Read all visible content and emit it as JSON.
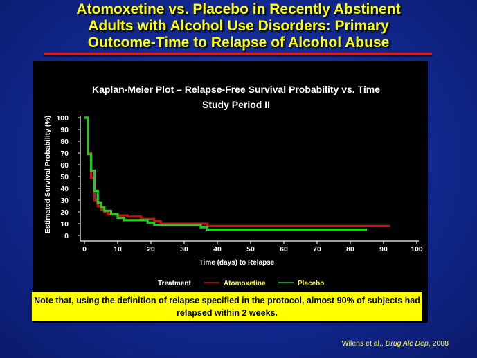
{
  "slide": {
    "title_lines": [
      "Atomoxetine vs. Placebo in Recently Abstinent",
      "Adults with Alcohol Use Disorders:  Primary",
      "Outcome-Time to Relapse of Alcohol Abuse"
    ],
    "note": "Note that, using the definition of relapse specified in the protocol, almost 90% of subjects had relapsed within 2 weeks.",
    "citation_authors": "Wilens et al., ",
    "citation_journal": "Drug Alc Dep",
    "citation_year": ", 2008"
  },
  "colors": {
    "background": "#12288f",
    "title": "#ffff00",
    "rule": "#d81c1c",
    "atomoxetine": "#cc1111",
    "placebo": "#22cc22",
    "note_bg": "#ffff00"
  },
  "chart_data": {
    "type": "line",
    "step": true,
    "title_lines": [
      "Kaplan-Meier Plot – Relapse-Free Survival Probability vs. Time",
      "Study Period II"
    ],
    "xlabel": "Time (days) to Relapse",
    "ylabel": "Estimated Survival Probability (%)",
    "xlim": [
      0,
      100
    ],
    "ylim": [
      0,
      100
    ],
    "xticks": [
      0,
      10,
      20,
      30,
      40,
      50,
      60,
      70,
      80,
      90,
      100
    ],
    "yticks": [
      0,
      10,
      20,
      30,
      40,
      50,
      60,
      70,
      80,
      90,
      100
    ],
    "legend_title": "Treatment",
    "legend_position": "bottom",
    "series": [
      {
        "name": "Atomoxetine",
        "color": "#cc1111",
        "points": [
          [
            0,
            100
          ],
          [
            1,
            100
          ],
          [
            1,
            70
          ],
          [
            2,
            70
          ],
          [
            2,
            49
          ],
          [
            3,
            49
          ],
          [
            3,
            30
          ],
          [
            4,
            30
          ],
          [
            4,
            25
          ],
          [
            5,
            25
          ],
          [
            5,
            22
          ],
          [
            6,
            22
          ],
          [
            6,
            20
          ],
          [
            7,
            20
          ],
          [
            7,
            18
          ],
          [
            10,
            18
          ],
          [
            10,
            17
          ],
          [
            13,
            17
          ],
          [
            13,
            16
          ],
          [
            17,
            16
          ],
          [
            17,
            14
          ],
          [
            21,
            14
          ],
          [
            21,
            12
          ],
          [
            23,
            12
          ],
          [
            23,
            10
          ],
          [
            37,
            10
          ],
          [
            37,
            8
          ],
          [
            92,
            8
          ]
        ]
      },
      {
        "name": "Placebo",
        "color": "#22cc22",
        "points": [
          [
            0,
            100
          ],
          [
            1,
            100
          ],
          [
            1,
            69
          ],
          [
            2,
            69
          ],
          [
            2,
            55
          ],
          [
            3,
            55
          ],
          [
            3,
            38
          ],
          [
            4,
            38
          ],
          [
            4,
            28
          ],
          [
            5,
            28
          ],
          [
            5,
            24
          ],
          [
            6,
            24
          ],
          [
            6,
            21
          ],
          [
            8,
            21
          ],
          [
            8,
            18
          ],
          [
            10,
            18
          ],
          [
            10,
            15
          ],
          [
            12,
            15
          ],
          [
            12,
            13
          ],
          [
            19,
            13
          ],
          [
            19,
            11
          ],
          [
            21,
            11
          ],
          [
            21,
            9
          ],
          [
            35,
            9
          ],
          [
            35,
            7
          ],
          [
            37,
            7
          ],
          [
            37,
            5
          ],
          [
            85,
            5
          ]
        ]
      }
    ]
  }
}
